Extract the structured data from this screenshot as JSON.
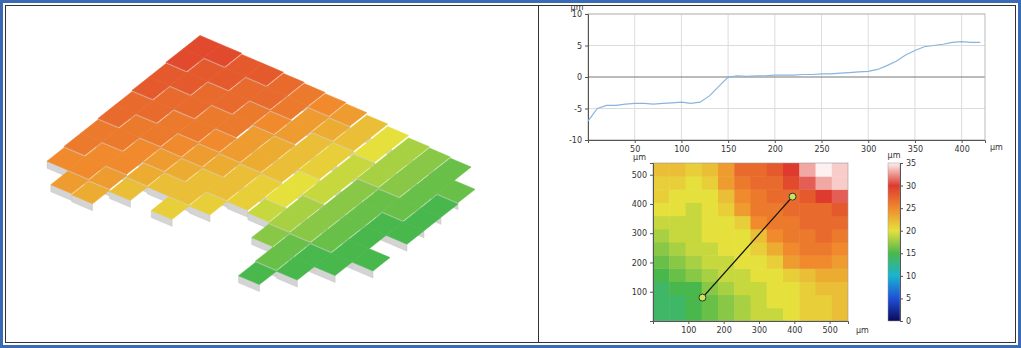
{
  "chart_data": [
    {
      "type": "surface",
      "cells": [
        [
          29,
          29,
          28,
          28,
          27,
          26,
          25,
          24,
          22,
          20,
          18,
          17,
          16,
          null
        ],
        [
          29,
          28,
          28,
          27,
          27,
          26,
          24,
          23,
          22,
          20,
          18,
          17,
          16,
          16
        ],
        [
          28,
          28,
          27,
          27,
          26,
          25,
          24,
          22,
          21,
          19,
          18,
          17,
          16,
          15
        ],
        [
          28,
          27,
          27,
          26,
          26,
          24,
          23,
          22,
          21,
          19,
          17,
          16,
          16,
          15
        ],
        [
          27,
          27,
          26,
          26,
          25,
          24,
          23,
          22,
          20,
          19,
          17,
          16,
          15,
          15
        ],
        [
          27,
          26,
          26,
          25,
          24,
          23,
          22,
          21,
          20,
          18,
          17,
          16,
          15,
          null
        ],
        [
          26,
          26,
          25,
          24,
          23,
          22,
          22,
          21,
          19,
          18,
          17,
          16,
          15,
          15
        ],
        [
          26,
          25,
          25,
          23,
          22,
          22,
          21,
          null,
          null,
          17,
          16,
          15,
          15,
          null
        ],
        [
          25,
          25,
          24,
          22,
          null,
          21,
          null,
          null,
          null,
          null,
          16,
          15,
          null,
          null
        ],
        [
          null,
          24,
          23,
          null,
          null,
          null,
          null,
          null,
          null,
          null,
          15,
          null,
          null,
          null
        ]
      ]
    },
    {
      "type": "line",
      "x": [
        0,
        10,
        20,
        30,
        40,
        50,
        60,
        70,
        80,
        90,
        100,
        110,
        120,
        130,
        140,
        150,
        160,
        170,
        180,
        190,
        200,
        210,
        220,
        230,
        240,
        250,
        260,
        270,
        280,
        290,
        300,
        310,
        320,
        330,
        340,
        350,
        360,
        370,
        380,
        390,
        400,
        410,
        420
      ],
      "values": [
        -7,
        -5,
        -4.5,
        -4.5,
        -4.3,
        -4.2,
        -4.2,
        -4.3,
        -4.2,
        -4.1,
        -4.0,
        -4.2,
        -4.0,
        -3.0,
        -1.5,
        0,
        0.2,
        0.1,
        0.2,
        0.2,
        0.3,
        0.3,
        0.3,
        0.4,
        0.4,
        0.5,
        0.5,
        0.6,
        0.7,
        0.8,
        0.9,
        1.2,
        1.8,
        2.5,
        3.5,
        4.2,
        4.8,
        5.0,
        5.2,
        5.5,
        5.6,
        5.5,
        5.5
      ],
      "color": "#8ab4de",
      "xlim": [
        0,
        425
      ],
      "xticks": [
        50,
        100,
        150,
        200,
        250,
        300,
        350,
        400
      ],
      "ylim": [
        -10,
        10
      ],
      "yticks": [
        10,
        5,
        0,
        -5,
        -10
      ],
      "x_label": "µm",
      "y_label": "µm",
      "grid": true
    },
    {
      "type": "heatmap",
      "x_edges": [
        0,
        46,
        92,
        138,
        184,
        230,
        276,
        322,
        368,
        414,
        460,
        506,
        552
      ],
      "y_edges": [
        0,
        45,
        90,
        135,
        180,
        225,
        270,
        315,
        360,
        405,
        450,
        495,
        540
      ],
      "cells": [
        [
          14,
          14,
          15,
          16,
          17,
          18,
          19,
          19,
          20,
          21,
          21,
          22
        ],
        [
          14,
          14,
          15,
          16,
          17,
          18,
          19,
          20,
          20,
          21,
          21,
          22
        ],
        [
          14,
          15,
          15,
          17,
          18,
          19,
          19,
          20,
          20,
          21,
          22,
          22
        ],
        [
          15,
          16,
          17,
          18,
          19,
          19,
          20,
          20,
          21,
          22,
          23,
          23
        ],
        [
          16,
          17,
          18,
          19,
          19,
          20,
          20,
          21,
          24,
          25,
          25,
          24
        ],
        [
          17,
          18,
          19,
          19,
          20,
          20,
          21,
          23,
          25,
          26,
          26,
          25
        ],
        [
          18,
          19,
          19,
          20,
          20,
          20,
          22,
          25,
          26,
          26,
          27,
          26
        ],
        [
          19,
          19,
          19,
          20,
          20,
          21,
          25,
          26,
          26,
          27,
          27,
          27
        ],
        [
          20,
          20,
          19,
          20,
          21,
          24,
          26,
          26,
          27,
          27,
          27,
          28
        ],
        [
          21,
          20,
          20,
          20,
          22,
          25,
          26,
          27,
          27,
          28,
          30,
          31
        ],
        [
          21,
          21,
          20,
          21,
          24,
          26,
          27,
          27,
          29,
          31,
          33,
          34
        ],
        [
          22,
          22,
          21,
          22,
          24,
          27,
          27,
          28,
          30,
          33,
          35,
          34
        ]
      ],
      "xlim": [
        0,
        552
      ],
      "xticks": [
        100,
        200,
        300,
        400,
        500
      ],
      "ylim": [
        0,
        540
      ],
      "yticks": [
        100,
        200,
        300,
        400,
        500
      ],
      "x_label": "µm",
      "y_label": "µm",
      "colorbar": {
        "range": [
          0,
          35
        ],
        "ticks": [
          0,
          5,
          10,
          15,
          20,
          25,
          30,
          35
        ],
        "label": "µm"
      },
      "profile_line": {
        "x": [
          140,
          395
        ],
        "y": [
          80,
          425
        ]
      }
    }
  ]
}
